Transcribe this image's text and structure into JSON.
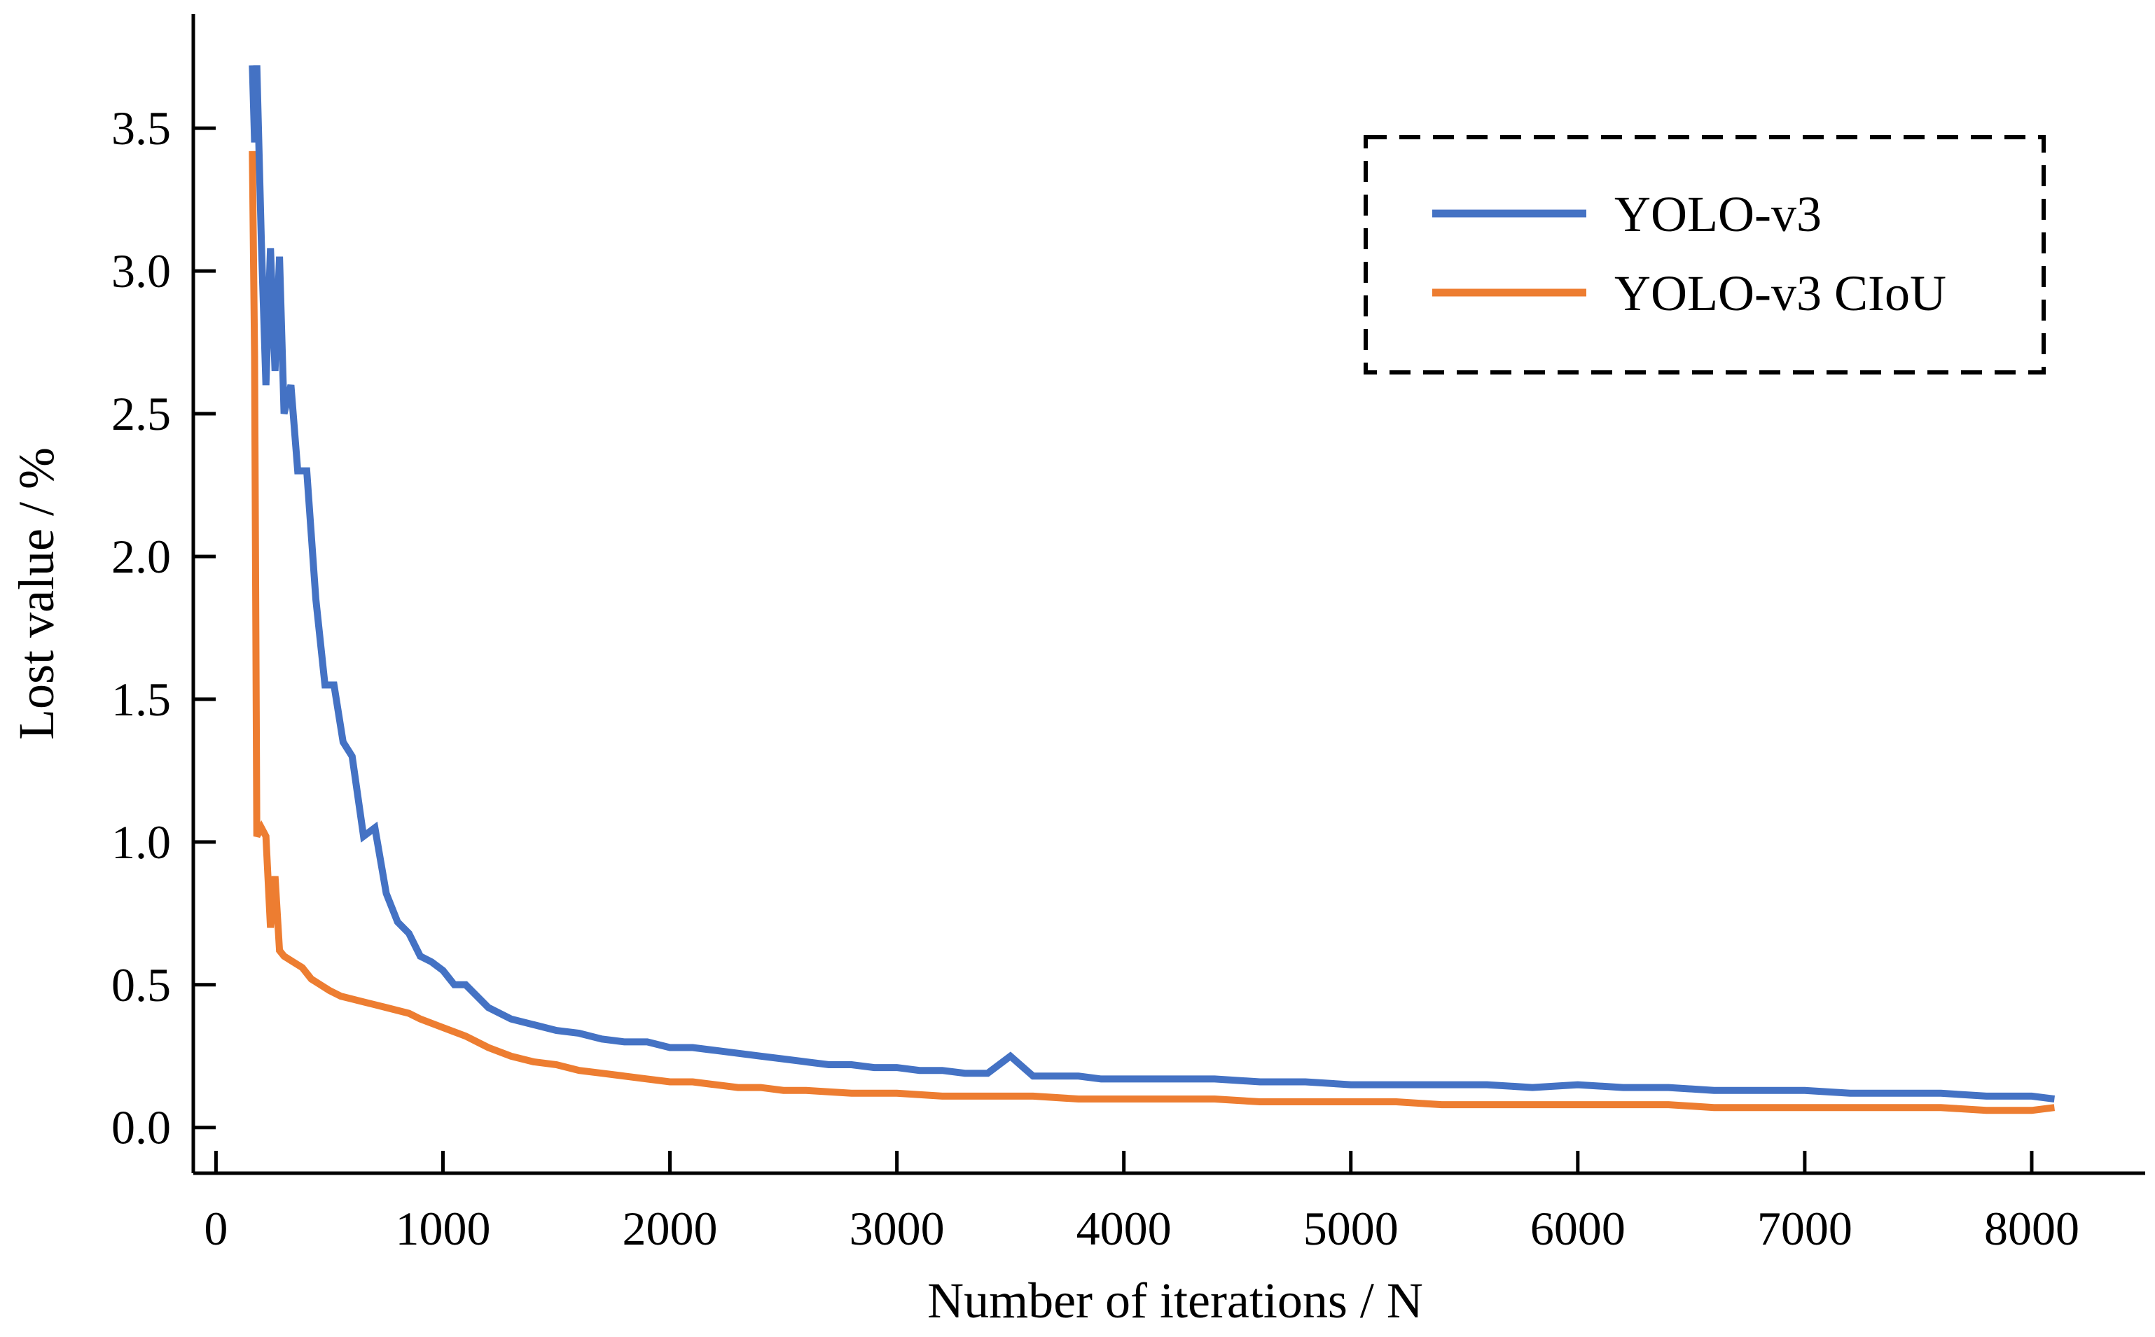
{
  "chart_data": {
    "type": "line",
    "title": "",
    "xlabel": "Number of iterations / N",
    "ylabel": "Lost value / %",
    "xlim": [
      -100,
      8500
    ],
    "ylim": [
      -0.16,
      3.9
    ],
    "xticks": [
      0,
      1000,
      2000,
      3000,
      4000,
      5000,
      6000,
      7000,
      8000
    ],
    "yticks": [
      0.0,
      0.5,
      1.0,
      1.5,
      2.0,
      2.5,
      3.0,
      3.5
    ],
    "xtick_labels": [
      "0",
      "1000",
      "2000",
      "3000",
      "4000",
      "5000",
      "6000",
      "7000",
      "8000"
    ],
    "ytick_labels": [
      "0.0",
      "0.5",
      "1.0",
      "1.5",
      "2.0",
      "2.5",
      "3.0",
      "3.5"
    ],
    "grid": false,
    "legend_position": "top-right",
    "series": [
      {
        "name": "YOLO-v3",
        "color": "#4472C4",
        "x": [
          160,
          170,
          180,
          200,
          220,
          240,
          260,
          280,
          300,
          330,
          360,
          400,
          440,
          480,
          520,
          560,
          600,
          650,
          700,
          750,
          800,
          850,
          900,
          950,
          1000,
          1050,
          1100,
          1200,
          1300,
          1400,
          1500,
          1600,
          1700,
          1800,
          1900,
          2000,
          2100,
          2200,
          2300,
          2400,
          2500,
          2600,
          2700,
          2800,
          2900,
          3000,
          3100,
          3200,
          3300,
          3400,
          3500,
          3600,
          3700,
          3800,
          3900,
          4000,
          4200,
          4400,
          4600,
          4800,
          5000,
          5200,
          5400,
          5600,
          5800,
          6000,
          6200,
          6400,
          6600,
          6800,
          7000,
          7200,
          7400,
          7600,
          7800,
          8000,
          8100
        ],
        "y": [
          3.72,
          3.45,
          3.72,
          3.1,
          2.6,
          3.08,
          2.65,
          3.05,
          2.5,
          2.6,
          2.3,
          2.3,
          1.85,
          1.55,
          1.55,
          1.35,
          1.3,
          1.02,
          1.05,
          0.82,
          0.72,
          0.68,
          0.6,
          0.58,
          0.55,
          0.5,
          0.5,
          0.42,
          0.38,
          0.36,
          0.34,
          0.33,
          0.31,
          0.3,
          0.3,
          0.28,
          0.28,
          0.27,
          0.26,
          0.25,
          0.24,
          0.23,
          0.22,
          0.22,
          0.21,
          0.21,
          0.2,
          0.2,
          0.19,
          0.19,
          0.25,
          0.18,
          0.18,
          0.18,
          0.17,
          0.17,
          0.17,
          0.17,
          0.16,
          0.16,
          0.15,
          0.15,
          0.15,
          0.15,
          0.14,
          0.15,
          0.14,
          0.14,
          0.13,
          0.13,
          0.13,
          0.12,
          0.12,
          0.12,
          0.11,
          0.11,
          0.1
        ]
      },
      {
        "name": "YOLO-v3 CIoU",
        "color": "#ED7D31",
        "x": [
          160,
          170,
          180,
          200,
          220,
          240,
          260,
          280,
          300,
          340,
          380,
          420,
          460,
          500,
          550,
          600,
          650,
          700,
          750,
          800,
          850,
          900,
          1000,
          1100,
          1200,
          1300,
          1400,
          1500,
          1600,
          1700,
          1800,
          1900,
          2000,
          2100,
          2200,
          2300,
          2400,
          2500,
          2600,
          2800,
          3000,
          3200,
          3400,
          3600,
          3800,
          4000,
          4200,
          4400,
          4600,
          4800,
          5000,
          5200,
          5400,
          5600,
          5800,
          6000,
          6200,
          6400,
          6600,
          6800,
          7000,
          7200,
          7400,
          7600,
          7800,
          8000,
          8100
        ],
        "y": [
          3.42,
          2.7,
          1.02,
          1.05,
          1.02,
          0.7,
          0.88,
          0.62,
          0.6,
          0.58,
          0.56,
          0.52,
          0.5,
          0.48,
          0.46,
          0.45,
          0.44,
          0.43,
          0.42,
          0.41,
          0.4,
          0.38,
          0.35,
          0.32,
          0.28,
          0.25,
          0.23,
          0.22,
          0.2,
          0.19,
          0.18,
          0.17,
          0.16,
          0.16,
          0.15,
          0.14,
          0.14,
          0.13,
          0.13,
          0.12,
          0.12,
          0.11,
          0.11,
          0.11,
          0.1,
          0.1,
          0.1,
          0.1,
          0.09,
          0.09,
          0.09,
          0.09,
          0.08,
          0.08,
          0.08,
          0.08,
          0.08,
          0.08,
          0.07,
          0.07,
          0.07,
          0.07,
          0.07,
          0.07,
          0.06,
          0.06,
          0.07
        ]
      }
    ]
  }
}
